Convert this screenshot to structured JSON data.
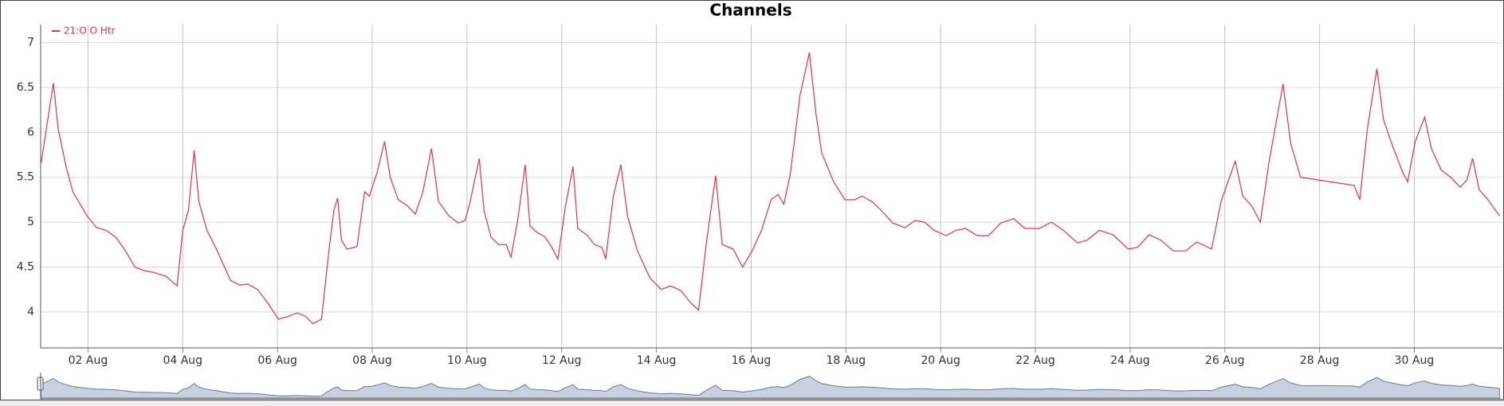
{
  "chart_data": {
    "type": "line",
    "title": "Channels",
    "series": [
      {
        "name": "21:O O Htr",
        "color": "#e8304a",
        "x": [
          1.01,
          1.27,
          1.37,
          1.54,
          1.68,
          1.98,
          2.18,
          2.38,
          2.59,
          2.79,
          2.99,
          3.19,
          3.39,
          3.64,
          3.88,
          4.0,
          4.12,
          4.24,
          4.34,
          4.51,
          4.71,
          5.01,
          5.21,
          5.37,
          5.58,
          5.82,
          6.02,
          6.22,
          6.42,
          6.59,
          6.75,
          6.93,
          7.09,
          7.19,
          7.27,
          7.35,
          7.47,
          7.68,
          7.84,
          7.94,
          8.1,
          8.26,
          8.38,
          8.55,
          8.75,
          8.91,
          9.07,
          9.25,
          9.4,
          9.62,
          9.82,
          9.96,
          10.06,
          10.26,
          10.36,
          10.51,
          10.67,
          10.83,
          10.93,
          11.07,
          11.23,
          11.33,
          11.47,
          11.64,
          11.78,
          11.92,
          12.08,
          12.24,
          12.34,
          12.53,
          12.69,
          12.85,
          12.93,
          13.09,
          13.25,
          13.39,
          13.6,
          13.86,
          14.1,
          14.3,
          14.51,
          14.71,
          14.89,
          15.05,
          15.25,
          15.39,
          15.62,
          15.82,
          16.02,
          16.22,
          16.42,
          16.57,
          16.69,
          16.83,
          17.03,
          17.23,
          17.37,
          17.49,
          17.74,
          17.98,
          18.18,
          18.34,
          18.55,
          18.75,
          18.99,
          19.25,
          19.46,
          19.66,
          19.86,
          20.12,
          20.32,
          20.53,
          20.77,
          21.01,
          21.27,
          21.54,
          21.78,
          22.08,
          22.34,
          22.59,
          22.89,
          23.09,
          23.35,
          23.64,
          23.96,
          24.16,
          24.4,
          24.65,
          24.91,
          25.17,
          25.41,
          25.72,
          25.92,
          26.22,
          26.38,
          26.57,
          26.75,
          26.93,
          27.23,
          27.39,
          27.6,
          28.73,
          28.85,
          29.01,
          29.21,
          29.35,
          29.56,
          29.76,
          29.86,
          30.02,
          30.22,
          30.36,
          30.57,
          30.77,
          30.97,
          31.11,
          31.23,
          31.37,
          31.54,
          31.8
        ],
        "values": [
          5.66,
          6.55,
          6.04,
          5.61,
          5.34,
          5.07,
          4.94,
          4.91,
          4.83,
          4.68,
          4.5,
          4.46,
          4.44,
          4.4,
          4.29,
          4.91,
          5.13,
          5.8,
          5.23,
          4.91,
          4.7,
          4.35,
          4.3,
          4.31,
          4.25,
          4.08,
          3.92,
          3.95,
          3.99,
          3.95,
          3.87,
          3.92,
          4.7,
          5.13,
          5.27,
          4.8,
          4.7,
          4.73,
          5.34,
          5.29,
          5.55,
          5.9,
          5.5,
          5.25,
          5.18,
          5.09,
          5.34,
          5.82,
          5.23,
          5.07,
          4.99,
          5.02,
          5.21,
          5.71,
          5.13,
          4.83,
          4.75,
          4.75,
          4.61,
          5.02,
          5.64,
          4.96,
          4.89,
          4.84,
          4.73,
          4.59,
          5.18,
          5.62,
          4.93,
          4.86,
          4.75,
          4.72,
          4.59,
          5.29,
          5.64,
          5.07,
          4.68,
          4.38,
          4.25,
          4.29,
          4.24,
          4.11,
          4.02,
          4.75,
          5.52,
          4.75,
          4.7,
          4.5,
          4.68,
          4.91,
          5.25,
          5.31,
          5.2,
          5.55,
          6.41,
          6.89,
          6.2,
          5.77,
          5.45,
          5.25,
          5.25,
          5.29,
          5.23,
          5.13,
          4.99,
          4.94,
          5.02,
          5.0,
          4.91,
          4.85,
          4.91,
          4.93,
          4.85,
          4.85,
          4.99,
          5.04,
          4.93,
          4.93,
          5.0,
          4.91,
          4.77,
          4.8,
          4.91,
          4.86,
          4.7,
          4.72,
          4.86,
          4.8,
          4.68,
          4.68,
          4.78,
          4.7,
          5.23,
          5.68,
          5.29,
          5.18,
          5.0,
          5.66,
          6.54,
          5.88,
          5.5,
          5.41,
          5.25,
          6.04,
          6.71,
          6.14,
          5.82,
          5.55,
          5.45,
          5.9,
          6.17,
          5.82,
          5.58,
          5.5,
          5.39,
          5.47,
          5.71,
          5.36,
          5.26,
          5.07
        ]
      }
    ],
    "xlim": [
      1.0,
      31.86
    ],
    "xticks": [
      {
        "value": 2,
        "label": "02 Aug"
      },
      {
        "value": 4,
        "label": "04 Aug"
      },
      {
        "value": 6,
        "label": "06 Aug"
      },
      {
        "value": 8,
        "label": "08 Aug"
      },
      {
        "value": 10,
        "label": "10 Aug"
      },
      {
        "value": 12,
        "label": "12 Aug"
      },
      {
        "value": 14,
        "label": "14 Aug"
      },
      {
        "value": 16,
        "label": "16 Aug"
      },
      {
        "value": 18,
        "label": "18 Aug"
      },
      {
        "value": 20,
        "label": "20 Aug"
      },
      {
        "value": 22,
        "label": "22 Aug"
      },
      {
        "value": 24,
        "label": "24 Aug"
      },
      {
        "value": 26,
        "label": "26 Aug"
      },
      {
        "value": 28,
        "label": "28 Aug"
      },
      {
        "value": 30,
        "label": "30 Aug"
      }
    ],
    "ylim": [
      3.6,
      7.2
    ],
    "yticks": [
      4,
      4.5,
      5,
      5.5,
      6,
      6.5,
      7
    ],
    "grid": true,
    "legend": "top-left"
  }
}
